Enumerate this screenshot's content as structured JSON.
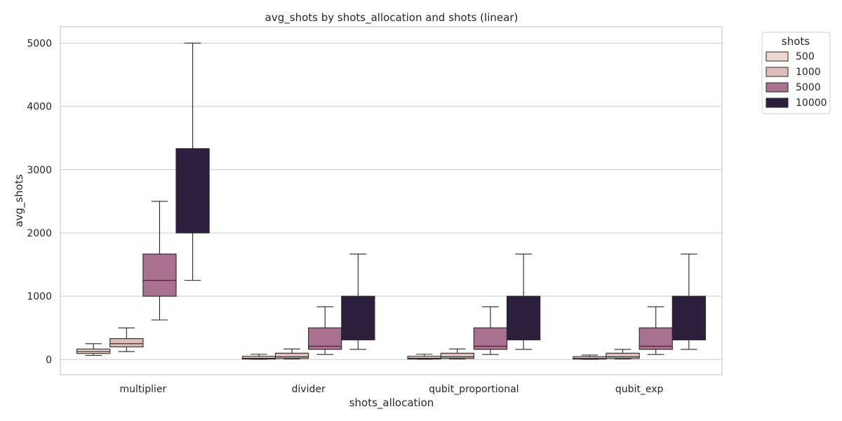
{
  "chart_data": {
    "type": "box",
    "title": "avg_shots by shots_allocation and shots (linear)",
    "xlabel": "shots_allocation",
    "ylabel": "avg_shots",
    "ylim": [
      -240,
      5260
    ],
    "yticks": [
      0,
      1000,
      2000,
      3000,
      4000,
      5000
    ],
    "grid": "y",
    "categories": [
      "multiplier",
      "divider",
      "qubit_proportional",
      "qubit_exp"
    ],
    "legend": {
      "title": "shots",
      "placement": "outside-top-right"
    },
    "series": [
      {
        "name": "500",
        "color": "#efd6d0",
        "boxes": [
          {
            "whisker_low": 65,
            "q1": 95,
            "median": 125,
            "q3": 165,
            "whisker_high": 250
          },
          {
            "whisker_low": 4,
            "q1": 8,
            "median": 20,
            "q3": 50,
            "whisker_high": 83
          },
          {
            "whisker_low": 4,
            "q1": 8,
            "median": 20,
            "q3": 50,
            "whisker_high": 83
          },
          {
            "whisker_low": 3,
            "q1": 7,
            "median": 18,
            "q3": 45,
            "whisker_high": 70
          }
        ]
      },
      {
        "name": "1000",
        "color": "#dfbdba",
        "boxes": [
          {
            "whisker_low": 125,
            "q1": 200,
            "median": 250,
            "q3": 330,
            "whisker_high": 500
          },
          {
            "whisker_low": 8,
            "q1": 17,
            "median": 42,
            "q3": 100,
            "whisker_high": 167
          },
          {
            "whisker_low": 8,
            "q1": 17,
            "median": 42,
            "q3": 100,
            "whisker_high": 167
          },
          {
            "whisker_low": 8,
            "q1": 17,
            "median": 42,
            "q3": 100,
            "whisker_high": 160
          }
        ]
      },
      {
        "name": "5000",
        "color": "#a8718f",
        "boxes": [
          {
            "whisker_low": 625,
            "q1": 1000,
            "median": 1250,
            "q3": 1667,
            "whisker_high": 2500
          },
          {
            "whisker_low": 80,
            "q1": 160,
            "median": 210,
            "q3": 500,
            "whisker_high": 833
          },
          {
            "whisker_low": 80,
            "q1": 160,
            "median": 210,
            "q3": 500,
            "whisker_high": 833
          },
          {
            "whisker_low": 80,
            "q1": 160,
            "median": 210,
            "q3": 500,
            "whisker_high": 833
          }
        ]
      },
      {
        "name": "10000",
        "color": "#2e1f3e",
        "boxes": [
          {
            "whisker_low": 1250,
            "q1": 2000,
            "median": 2500,
            "q3": 3333,
            "whisker_high": 5000
          },
          {
            "whisker_low": 160,
            "q1": 310,
            "median": 420,
            "q3": 1000,
            "whisker_high": 1667
          },
          {
            "whisker_low": 160,
            "q1": 310,
            "median": 420,
            "q3": 1000,
            "whisker_high": 1667
          },
          {
            "whisker_low": 160,
            "q1": 310,
            "median": 420,
            "q3": 1000,
            "whisker_high": 1667
          }
        ]
      }
    ]
  }
}
